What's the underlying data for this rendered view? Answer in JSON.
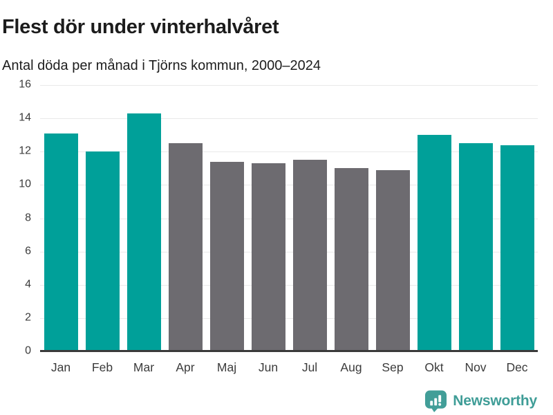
{
  "chart_data": {
    "type": "bar",
    "title": "Flest dör under vinterhalvåret",
    "subtitle": "Antal döda per månad i Tjörns kommun, 2000–2024",
    "categories": [
      "Jan",
      "Feb",
      "Mar",
      "Apr",
      "Maj",
      "Jun",
      "Jul",
      "Aug",
      "Sep",
      "Okt",
      "Nov",
      "Dec"
    ],
    "values": [
      13.1,
      12.0,
      14.3,
      12.5,
      11.4,
      11.3,
      11.5,
      11.0,
      10.9,
      13.0,
      12.5,
      12.4
    ],
    "bar_colors": [
      "winter",
      "winter",
      "winter",
      "summer",
      "summer",
      "summer",
      "summer",
      "summer",
      "summer",
      "winter",
      "winter",
      "winter"
    ],
    "xlabel": "",
    "ylabel": "",
    "ylim": [
      0,
      16
    ],
    "ytick_step": 2,
    "grid": "horizontal",
    "legend": "none"
  },
  "colors": {
    "winter": "#00a099",
    "summer": "#6d6b70",
    "gridline": "#e9e9e9",
    "axis_line": "#3a3a3a",
    "title_text": "#1c1c1c",
    "tick_text": "#3b3b3b",
    "logo_teal": "#3f9d97"
  },
  "footer": {
    "brand": "Newsworthy"
  }
}
